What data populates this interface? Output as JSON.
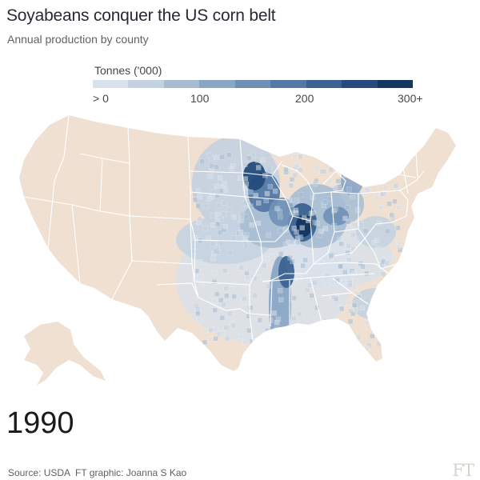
{
  "title": "Soyabeans conquer the US corn belt",
  "subtitle": "Annual production by county",
  "legend": {
    "title": "Tonnes ('000)",
    "ticks": [
      "> 0",
      "100",
      "200",
      "300+"
    ],
    "colors": [
      "#d9e1ea",
      "#c3d1e0",
      "#a6bcd3",
      "#8aa6c5",
      "#6f90b6",
      "#5479a5",
      "#3b6291",
      "#244b7b",
      "#153862"
    ]
  },
  "year": "1990",
  "source": "Source: USDA",
  "credit": "FT graphic: Joanna S Kao",
  "logo": "FT",
  "map_colors": {
    "land": "#efe0d1",
    "border": "#ffffff",
    "production_light": "#d9e1ea",
    "production_mid": "#8aa6c5",
    "production_dark": "#153862"
  }
}
